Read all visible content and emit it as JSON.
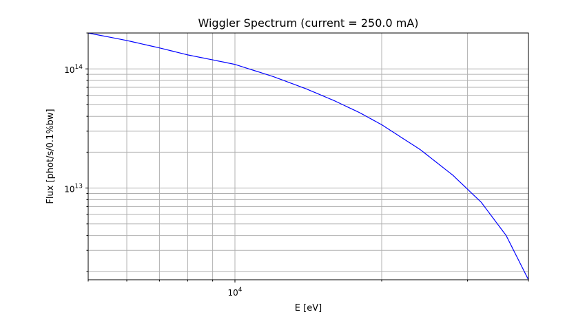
{
  "chart_data": {
    "type": "line",
    "title": "Wiggler Spectrum (current = 250.0 mA)",
    "xlabel": "E [eV]",
    "ylabel": "Flux [phot/s/0.1%bw]",
    "xscale": "log",
    "yscale": "log",
    "xlim": [
      5000,
      40000
    ],
    "ylim": [
      1700000000000.0,
      200000000000000.0
    ],
    "grid": "both-major-minor",
    "x_tick_labels": [
      {
        "base": "10",
        "exp": "4",
        "value": 10000
      }
    ],
    "y_tick_labels": [
      {
        "base": "10",
        "exp": "13",
        "value": 10000000000000.0
      },
      {
        "base": "10",
        "exp": "14",
        "value": 100000000000000.0
      }
    ],
    "series": [
      {
        "color": "#0000ff",
        "x": [
          5000,
          6000,
          7000,
          8000,
          9000,
          10000,
          12000,
          14000,
          16000,
          18000,
          20000,
          24000,
          28000,
          32000,
          36000,
          40000
        ],
        "y": [
          200000000000000.0,
          173000000000000.0,
          150000000000000.0,
          131000000000000.0,
          119000000000000.0,
          109000000000000.0,
          86000000000000.0,
          68000000000000.0,
          54000000000000.0,
          43000000000000.0,
          34000000000000.0,
          21000000000000.0,
          12800000000000.0,
          7600000000000.0,
          4000000000000.0,
          1700000000000.0
        ]
      }
    ]
  }
}
